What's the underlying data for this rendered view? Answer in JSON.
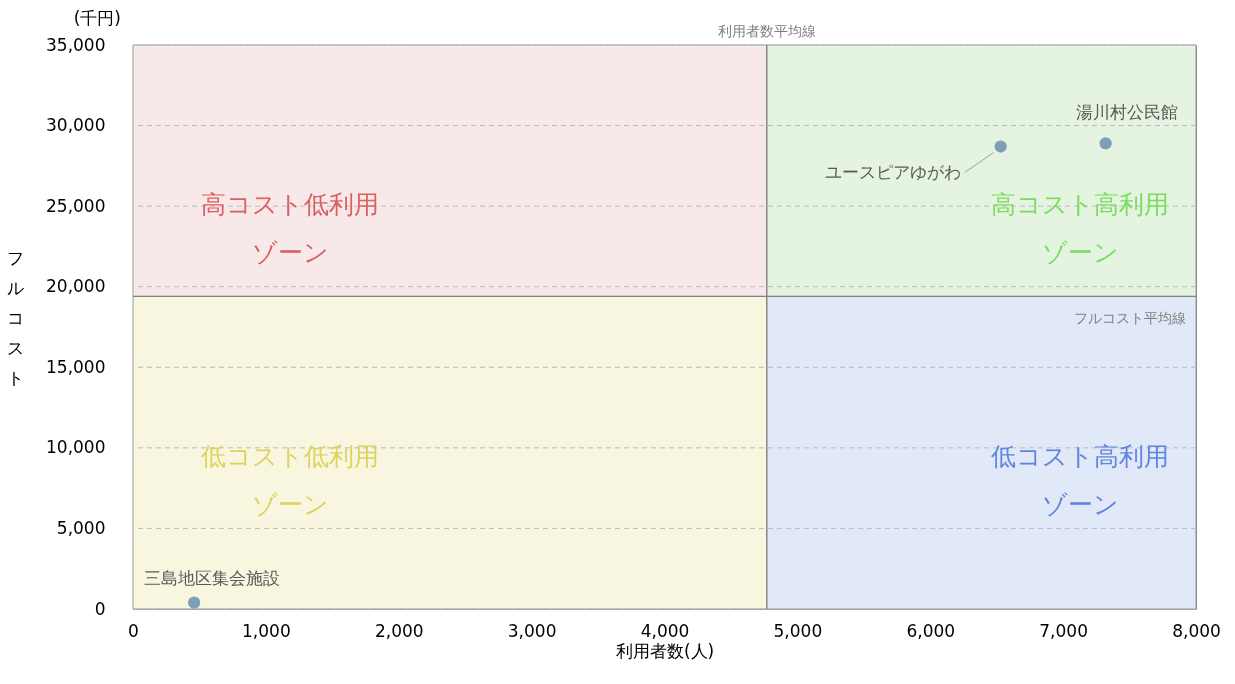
{
  "chart_data": {
    "type": "scatter",
    "xlabel": "利用者数(人)",
    "ylabel": "フルコスト",
    "xlim": [
      0,
      8000
    ],
    "xticks": [
      {
        "value": 0,
        "label": "0"
      },
      {
        "value": 1000,
        "label": "1,000"
      },
      {
        "value": 2000,
        "label": "2,000"
      },
      {
        "value": 3000,
        "label": "3,000"
      },
      {
        "value": 4000,
        "label": "4,000"
      },
      {
        "value": 5000,
        "label": "5,000"
      },
      {
        "value": 6000,
        "label": "6,000"
      },
      {
        "value": 7000,
        "label": "7,000"
      },
      {
        "value": 8000,
        "label": "8,000"
      }
    ],
    "ylim": [
      0,
      35000
    ],
    "yticks": [
      {
        "value": 0,
        "label": "0"
      },
      {
        "value": 5000,
        "label": "5,000"
      },
      {
        "value": 10000,
        "label": "10,000"
      },
      {
        "value": 15000,
        "label": "15,000"
      },
      {
        "value": 20000,
        "label": "20,000"
      },
      {
        "value": 25000,
        "label": "25,000"
      },
      {
        "value": 30000,
        "label": "30,000"
      },
      {
        "value": 35000,
        "label": "35,000"
      }
    ],
    "grid": "y",
    "marker": "circle",
    "series": [
      {
        "color": "#7f9fb8",
        "x": [
          460,
          6530,
          7320
        ],
        "values": [
          400,
          28700,
          28900
        ]
      }
    ],
    "annotations": [
      {
        "text": "三島地区集会施設",
        "x": 460,
        "y": 400
      },
      {
        "text": "ユースピアゆがわ",
        "x": 6530,
        "y": 28700
      },
      {
        "text": "湯川村公民館",
        "x": 7320,
        "y": 28900
      },
      "(千円)"
    ],
    "ref_lines": [
      {
        "axis": "x",
        "value": 4770,
        "label": "利用者数平均線",
        "color": "#7f7f7f"
      },
      {
        "axis": "y",
        "value": 19400,
        "label": "フルコスト平均線",
        "color": "#7f7f7f"
      }
    ],
    "bands": [
      {
        "axis": "y",
        "from": 19400,
        "to": 35000,
        "label": "高コスト低利用ゾーン",
        "color": "#f7e9e9"
      },
      {
        "axis": "y",
        "from": 19400,
        "to": 35000,
        "label": "高コスト高利用ゾーン",
        "color": "#e5f3e1"
      },
      {
        "axis": "y",
        "from": 0,
        "to": 19400,
        "label": "低コスト低利用ゾーン",
        "color": "#f8f6df"
      },
      {
        "axis": "y",
        "from": 0,
        "to": 19400,
        "label": "低コスト高利用ゾーン",
        "color": "#e1e8f8"
      }
    ]
  }
}
